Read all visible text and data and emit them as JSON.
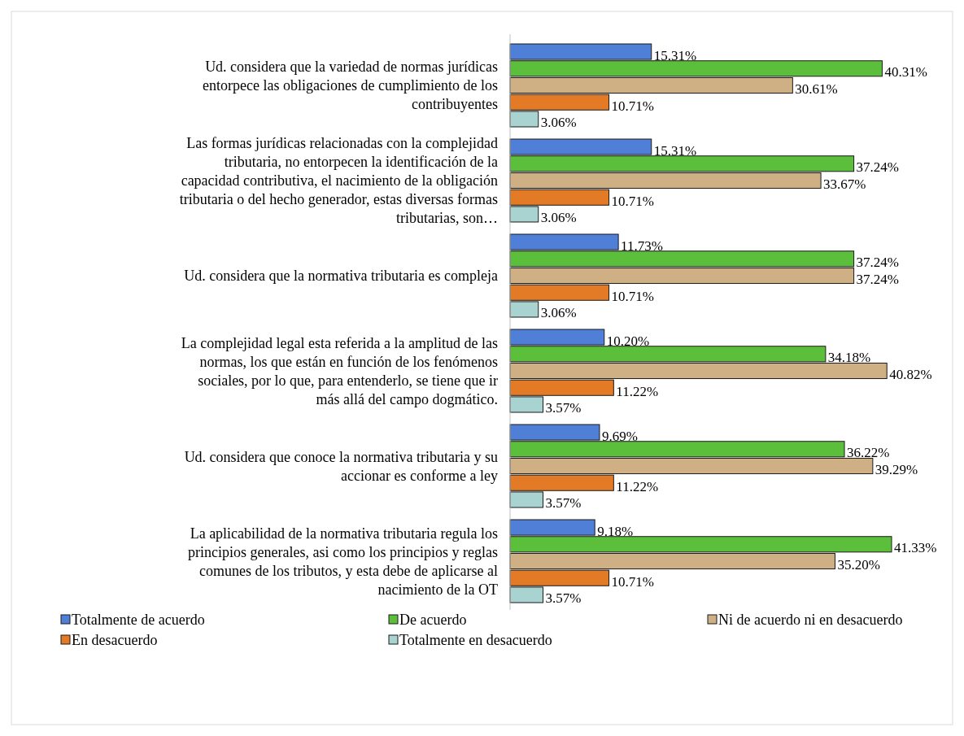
{
  "chart_data": {
    "type": "bar",
    "orientation": "horizontal",
    "data_labels": true,
    "legend": "bottom",
    "categories": [
      "Ud. considera que la variedad de normas jurídicas entorpece las obligaciones de cumplimiento de los contribuyentes",
      "Las formas jurídicas relacionadas con la complejidad tributaria, no entorpecen la identificación de la capacidad contributiva, el nacimiento de la obligación tributaria o del hecho generador, estas diversas formas tributarias, son…",
      "Ud. considera que la normativa tributaria es compleja",
      "La complejidad legal esta referida a la amplitud de las normas, los que están en función de los fenómenos sociales, por lo que, para entenderlo, se tiene que ir más allá del campo dogmático.",
      "Ud. considera que conoce la normativa tributaria y su accionar es conforme a ley",
      "La aplicabilidad de la normativa tributaria regula los principios generales, asi como los principios y reglas comunes de los tributos, y esta debe de aplicarse al nacimiento de la OT"
    ],
    "series": [
      {
        "name": "Totalmente de acuerdo",
        "color": "#4f7fd6",
        "values": [
          15.31,
          15.31,
          11.73,
          10.2,
          9.69,
          9.18
        ],
        "value_labels": [
          "15.31%",
          "15.31%",
          "11.73%",
          "10.20%",
          "9.69%",
          "9.18%"
        ]
      },
      {
        "name": "De acuerdo",
        "color": "#5cbf3c",
        "values": [
          40.31,
          37.24,
          37.24,
          34.18,
          36.22,
          41.33
        ],
        "value_labels": [
          "40.31%",
          "37.24%",
          "37.24%",
          "34.18%",
          "36.22%",
          "41.33%"
        ]
      },
      {
        "name": "Ni de acuerdo ni en desacuerdo",
        "color": "#cfb084",
        "values": [
          30.61,
          33.67,
          37.24,
          40.82,
          39.29,
          35.2
        ],
        "value_labels": [
          "30.61%",
          "33.67%",
          "37.24%",
          "40.82%",
          "39.29%",
          "35.20%"
        ]
      },
      {
        "name": "En desacuerdo",
        "color": "#e37a26",
        "values": [
          10.71,
          10.71,
          10.71,
          11.22,
          11.22,
          10.71
        ],
        "value_labels": [
          "10.71%",
          "10.71%",
          "10.71%",
          "11.22%",
          "11.22%",
          "10.71%"
        ]
      },
      {
        "name": "Totalmente en desacuerdo",
        "color": "#a8d3d0",
        "values": [
          3.06,
          3.06,
          3.06,
          3.57,
          3.57,
          3.57
        ],
        "value_labels": [
          "3.06%",
          "3.06%",
          "3.06%",
          "3.57%",
          "3.57%",
          "3.57%"
        ]
      }
    ]
  }
}
